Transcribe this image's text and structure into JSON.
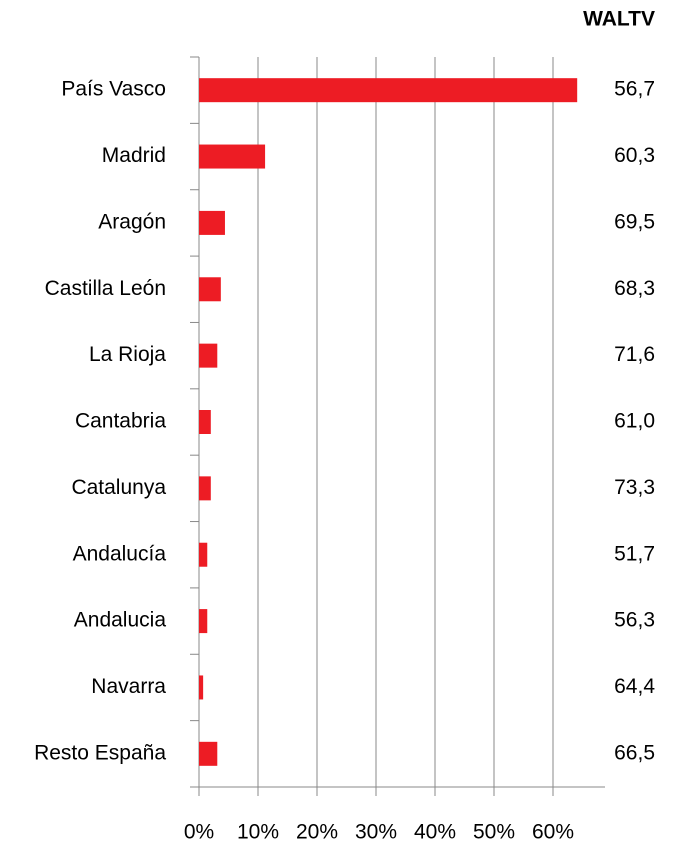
{
  "chart_data": {
    "type": "bar",
    "categories": [
      "País Vasco",
      "Madrid",
      "Aragón",
      "Castilla León",
      "La Rioja",
      "Cantabria",
      "Catalunya",
      "Andalucía",
      "Andalucia",
      "Navarra",
      "Resto España"
    ],
    "values": [
      64.1,
      11.2,
      4.4,
      3.7,
      3.1,
      2.0,
      2.0,
      1.4,
      1.4,
      0.7,
      3.1
    ],
    "color": "#ed1c24",
    "xlim": [
      0,
      68
    ],
    "xticks": [
      {
        "value": 0,
        "label": "0%"
      },
      {
        "value": 10,
        "label": "10%"
      },
      {
        "value": 20,
        "label": "20%"
      },
      {
        "value": 30,
        "label": "30%"
      },
      {
        "value": 40,
        "label": "40%"
      },
      {
        "value": 50,
        "label": "50%"
      },
      {
        "value": 60,
        "label": "60%"
      }
    ],
    "grid": true,
    "waltv": {
      "title": "WALTV",
      "values": [
        56.7,
        60.3,
        69.5,
        68.3,
        71.6,
        61.0,
        73.3,
        51.7,
        56.3,
        64.4,
        66.5
      ],
      "value_labels": [
        "56,7",
        "60,3",
        "69,5",
        "68,3",
        "71,6",
        "61,0",
        "73,3",
        "51,7",
        "56,3",
        "64,4",
        "66,5"
      ]
    }
  }
}
